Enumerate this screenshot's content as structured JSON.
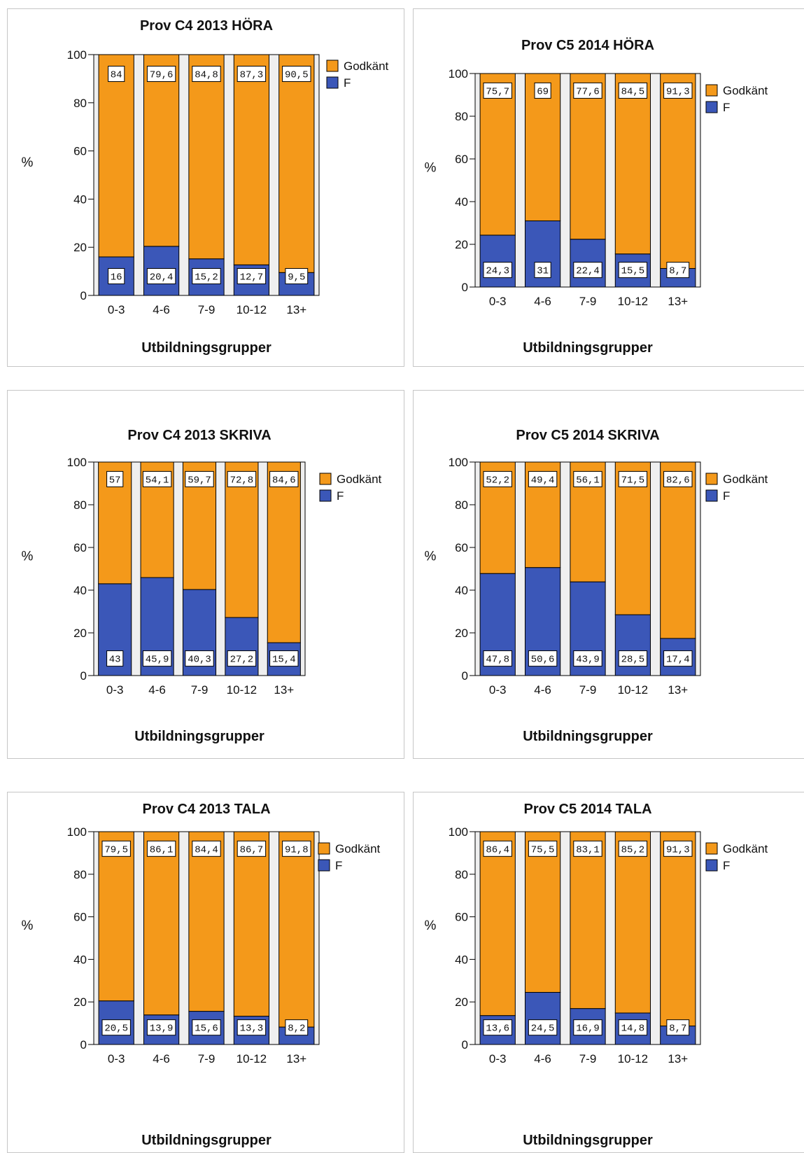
{
  "colors": {
    "godkant": "#f4991a",
    "f": "#3b57b8",
    "plot_bg": "#efefef"
  },
  "chart_data": [
    {
      "type": "bar",
      "title": "Prov C4 2013 HÖRA",
      "xlabel": "Utbildningsgrupper",
      "ylabel": "%",
      "ylim": [
        0,
        100
      ],
      "yticks": [
        "0",
        "20",
        "40",
        "60",
        "80",
        "100"
      ],
      "categories": [
        "0-3",
        "4-6",
        "7-9",
        "10-12",
        "13+"
      ],
      "legend_position": "right",
      "series": [
        {
          "name": "Godkänt",
          "values": [
            84,
            79.6,
            84.8,
            87.3,
            90.5
          ],
          "labels": [
            "84",
            "79,6",
            "84,8",
            "87,3",
            "90,5"
          ]
        },
        {
          "name": "F",
          "values": [
            16,
            20.4,
            15.2,
            12.7,
            9.5
          ],
          "labels": [
            "16",
            "20,4",
            "15,2",
            "12,7",
            "9,5"
          ]
        }
      ]
    },
    {
      "type": "bar",
      "title": "Prov C5 2014 HÖRA",
      "xlabel": "Utbildningsgrupper",
      "ylabel": "%",
      "ylim": [
        0,
        100
      ],
      "yticks": [
        "0",
        "20",
        "40",
        "60",
        "80",
        "100"
      ],
      "categories": [
        "0-3",
        "4-6",
        "7-9",
        "10-12",
        "13+"
      ],
      "legend_position": "right",
      "series": [
        {
          "name": "Godkänt",
          "values": [
            75.7,
            69,
            77.6,
            84.5,
            91.3
          ],
          "labels": [
            "75,7",
            "69",
            "77,6",
            "84,5",
            "91,3"
          ]
        },
        {
          "name": "F",
          "values": [
            24.3,
            31,
            22.4,
            15.5,
            8.7
          ],
          "labels": [
            "24,3",
            "31",
            "22,4",
            "15,5",
            "8,7"
          ]
        }
      ]
    },
    {
      "type": "bar",
      "title": "Prov C4 2013 SKRIVA",
      "xlabel": "Utbildningsgrupper",
      "ylabel": "%",
      "ylim": [
        0,
        100
      ],
      "yticks": [
        "0",
        "20",
        "40",
        "60",
        "80",
        "100"
      ],
      "categories": [
        "0-3",
        "4-6",
        "7-9",
        "10-12",
        "13+"
      ],
      "legend_position": "right",
      "series": [
        {
          "name": "Godkänt",
          "values": [
            57,
            54.1,
            59.7,
            72.8,
            84.6
          ],
          "labels": [
            "57",
            "54,1",
            "59,7",
            "72,8",
            "84,6"
          ]
        },
        {
          "name": "F",
          "values": [
            43,
            45.9,
            40.3,
            27.2,
            15.4
          ],
          "labels": [
            "43",
            "45,9",
            "40,3",
            "27,2",
            "15,4"
          ]
        }
      ]
    },
    {
      "type": "bar",
      "title": "Prov C5 2014 SKRIVA",
      "xlabel": "Utbildningsgrupper",
      "ylabel": "%",
      "ylim": [
        0,
        100
      ],
      "yticks": [
        "0",
        "20",
        "40",
        "60",
        "80",
        "100"
      ],
      "categories": [
        "0-3",
        "4-6",
        "7-9",
        "10-12",
        "13+"
      ],
      "legend_position": "right",
      "series": [
        {
          "name": "Godkänt",
          "values": [
            52.2,
            49.4,
            56.1,
            71.5,
            82.6
          ],
          "labels": [
            "52,2",
            "49,4",
            "56,1",
            "71,5",
            "82,6"
          ]
        },
        {
          "name": "F",
          "values": [
            47.8,
            50.6,
            43.9,
            28.5,
            17.4
          ],
          "labels": [
            "47,8",
            "50,6",
            "43,9",
            "28,5",
            "17,4"
          ]
        }
      ]
    },
    {
      "type": "bar",
      "title": "Prov C4 2013 TALA",
      "xlabel": "Utbildningsgrupper",
      "ylabel": "%",
      "ylim": [
        0,
        100
      ],
      "yticks": [
        "0",
        "20",
        "40",
        "60",
        "80",
        "100"
      ],
      "categories": [
        "0-3",
        "4-6",
        "7-9",
        "10-12",
        "13+"
      ],
      "legend_position": "right",
      "series": [
        {
          "name": "Godkänt",
          "values": [
            79.5,
            86.1,
            84.4,
            86.7,
            91.8
          ],
          "labels": [
            "79,5",
            "86,1",
            "84,4",
            "86,7",
            "91,8"
          ]
        },
        {
          "name": "F",
          "values": [
            20.5,
            13.9,
            15.6,
            13.3,
            8.2
          ],
          "labels": [
            "20,5",
            "13,9",
            "15,6",
            "13,3",
            "8,2"
          ]
        }
      ]
    },
    {
      "type": "bar",
      "title": "Prov C5 2014 TALA",
      "xlabel": "Utbildningsgrupper",
      "ylabel": "%",
      "ylim": [
        0,
        100
      ],
      "yticks": [
        "0",
        "20",
        "40",
        "60",
        "80",
        "100"
      ],
      "categories": [
        "0-3",
        "4-6",
        "7-9",
        "10-12",
        "13+"
      ],
      "legend_position": "right",
      "series": [
        {
          "name": "Godkänt",
          "values": [
            86.4,
            75.5,
            83.1,
            85.2,
            91.3
          ],
          "labels": [
            "86,4",
            "75,5",
            "83,1",
            "85,2",
            "91,3"
          ]
        },
        {
          "name": "F",
          "values": [
            13.6,
            24.5,
            16.9,
            14.8,
            8.7
          ],
          "labels": [
            "13,6",
            "24,5",
            "16,9",
            "14,8",
            "8,7"
          ]
        }
      ]
    }
  ]
}
